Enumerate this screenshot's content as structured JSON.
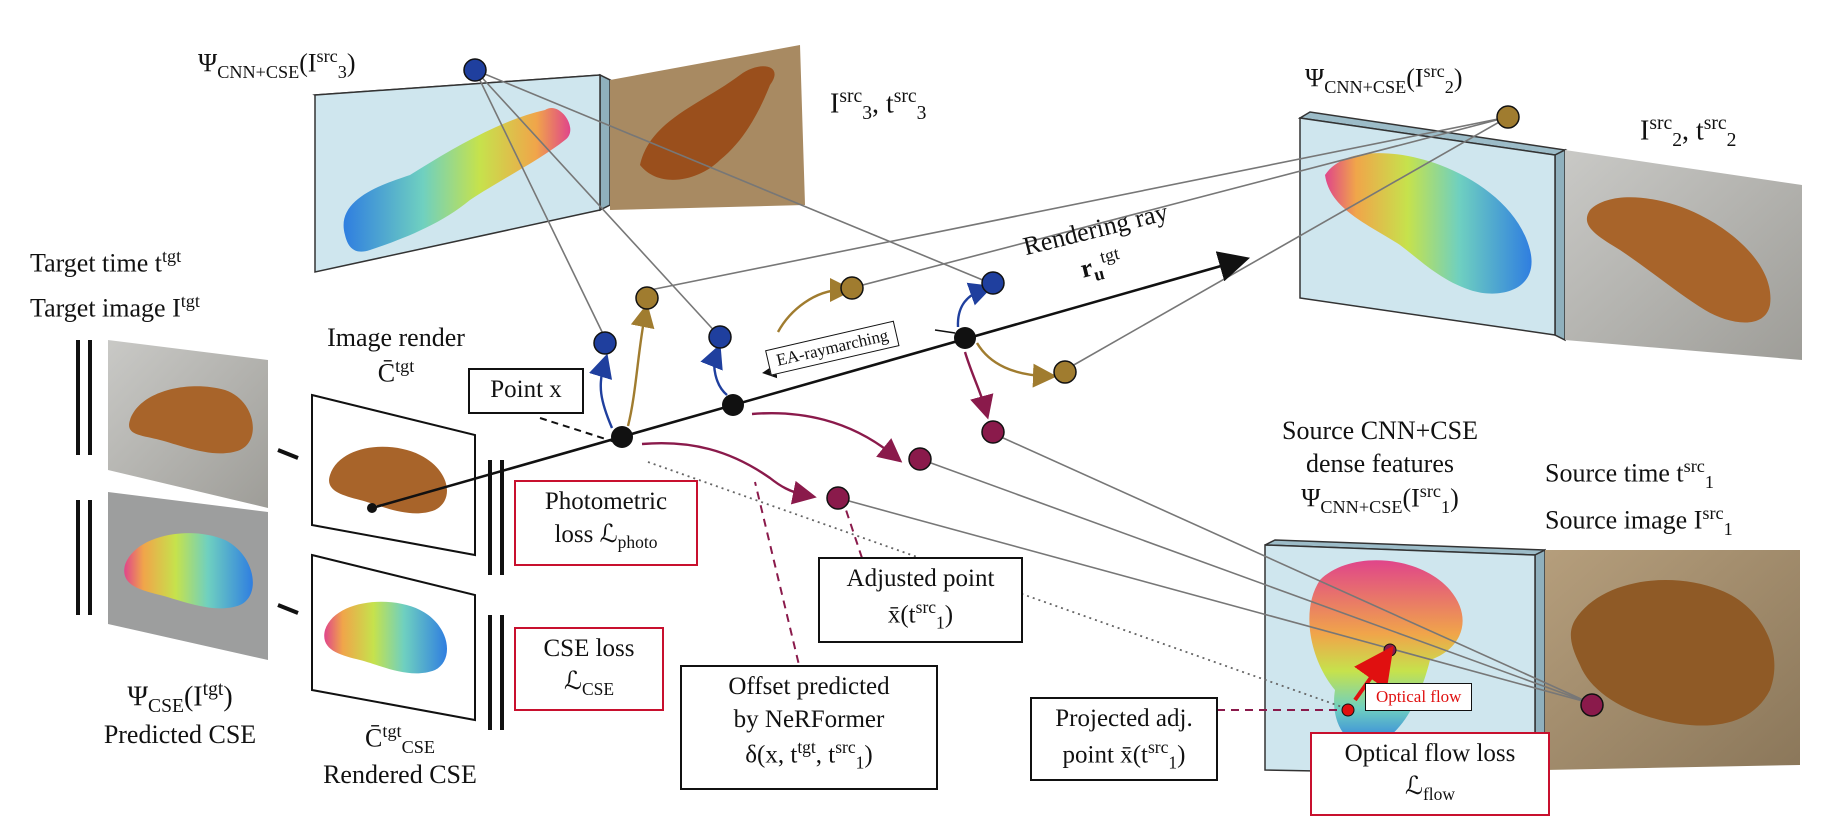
{
  "labels": {
    "psi3": "Ψ",
    "psi3_sub": "CNN+CSE",
    "psi3_arg": "(I",
    "psi3_sup": "src",
    "psi3_idx": "3",
    "src3_label": "I",
    "src3_sup1": "src",
    "src3_sub1": "3",
    "src3_t": ", t",
    "src3_sup2": "src",
    "src3_sub2": "3",
    "psi2": "Ψ",
    "psi2_sub": "CNN+CSE",
    "psi2_arg": "(I",
    "psi2_sup": "src",
    "psi2_idx": "2",
    "src2_label": "I",
    "src2_sup1": "src",
    "src2_sub1": "2",
    "src2_t": ", t",
    "src2_sup2": "src",
    "src2_sub2": "2",
    "target_time": "Target time t",
    "target_time_sup": "tgt",
    "target_image": "Target image I",
    "target_image_sup": "tgt",
    "image_render": "Image render",
    "c_bar": "C̄",
    "c_bar_sup": "tgt",
    "rendering_ray": "Rendering ray",
    "ray_symbol": "r",
    "ray_sub": "u",
    "ray_sup": "tgt",
    "ea_raymarching": "EA-raymarching",
    "point_x": "Point x",
    "photometric_line1": "Photometric",
    "photometric_line2": "loss ℒ",
    "photometric_sub": "photo",
    "cse_loss_line1": "CSE loss",
    "cse_loss_line2": "ℒ",
    "cse_loss_sub": "CSE",
    "adjusted_line1": "Adjusted point",
    "adjusted_line2": "x̄(t",
    "adjusted_sup": "src",
    "adjusted_sub": "1",
    "offset_line1": "Offset predicted",
    "offset_line2": "by NeRFormer",
    "offset_line3": "δ(x, t",
    "offset_sup1": "tgt",
    "offset_mid": ", t",
    "offset_sup2": "src",
    "offset_sub2": "1",
    "source_cnn_line1": "Source CNN+CSE",
    "source_cnn_line2": "dense features",
    "psi1": "Ψ",
    "psi1_sub": "CNN+CSE",
    "psi1_arg": "(I",
    "psi1_sup": "src",
    "psi1_idx": "1",
    "source_time": "Source time t",
    "source_time_sup": "src",
    "source_time_sub": "1",
    "source_image": "Source image I",
    "source_image_sup": "src",
    "source_image_sub": "1",
    "psi_cse": "Ψ",
    "psi_cse_sub": "CSE",
    "psi_cse_arg": "(I",
    "psi_cse_sup": "tgt",
    "predicted_cse": "Predicted CSE",
    "c_cse": "C̄",
    "c_cse_sup": "tgt",
    "c_cse_sub": "CSE",
    "rendered_cse": "Rendered CSE",
    "projected_line1": "Projected adj.",
    "projected_line2": "point x̄(t",
    "projected_sup": "src",
    "projected_sub": "1",
    "optical_flow": "Optical flow",
    "flow_loss_line1": "Optical flow loss",
    "flow_loss_line2": "ℒ",
    "flow_loss_sub": "flow"
  },
  "colors": {
    "blue": "#1f3f9e",
    "gold": "#a07c2f",
    "maroon": "#8a1a4b",
    "red_box": "#c8102e",
    "panel": "#cfe6ee",
    "flow_red": "#e01010"
  }
}
